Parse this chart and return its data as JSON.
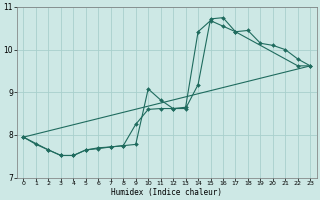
{
  "xlabel": "Humidex (Indice chaleur)",
  "xlim": [
    -0.5,
    23.5
  ],
  "ylim": [
    7,
    11
  ],
  "yticks": [
    7,
    8,
    9,
    10,
    11
  ],
  "xticks": [
    0,
    1,
    2,
    3,
    4,
    5,
    6,
    7,
    8,
    9,
    10,
    11,
    12,
    13,
    14,
    15,
    16,
    17,
    18,
    19,
    20,
    21,
    22,
    23
  ],
  "bg_color": "#cde8e5",
  "grid_color": "#a8d0cc",
  "line_color": "#1f6b5e",
  "line1_x": [
    0,
    1,
    2,
    3,
    4,
    5,
    6,
    7,
    8,
    9,
    10,
    11,
    12,
    13,
    14,
    15,
    16,
    17,
    22,
    23
  ],
  "line1_y": [
    7.95,
    7.78,
    7.65,
    7.52,
    7.52,
    7.65,
    7.68,
    7.72,
    7.75,
    8.25,
    8.6,
    8.62,
    8.62,
    8.65,
    10.42,
    10.68,
    10.55,
    10.42,
    9.62,
    9.62
  ],
  "line2_x": [
    0,
    2,
    3,
    4,
    5,
    6,
    7,
    8,
    9,
    10,
    11,
    12,
    13,
    14,
    15,
    16,
    17,
    18,
    19,
    20,
    21,
    22,
    23
  ],
  "line2_y": [
    7.95,
    7.65,
    7.52,
    7.52,
    7.65,
    7.7,
    7.72,
    7.75,
    7.78,
    9.08,
    8.82,
    8.62,
    8.62,
    9.18,
    10.72,
    10.75,
    10.42,
    10.45,
    10.15,
    10.1,
    10.0,
    9.78,
    9.62
  ],
  "line3_x": [
    0,
    23
  ],
  "line3_y": [
    7.95,
    9.62
  ]
}
